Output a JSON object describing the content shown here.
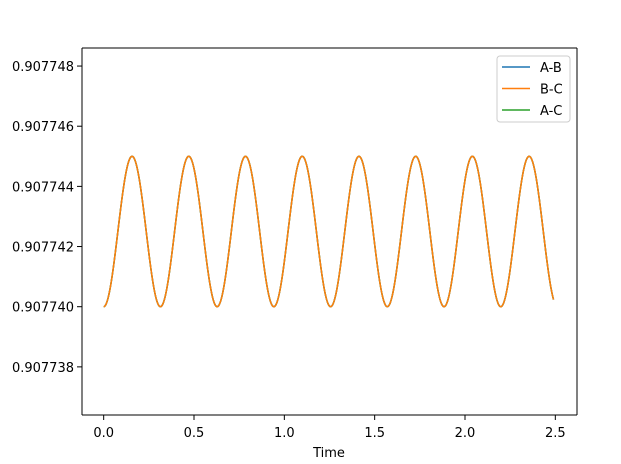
{
  "chart_data": {
    "type": "line",
    "title": "",
    "xlabel": "Time",
    "ylabel": "",
    "xlim": [
      -0.12,
      2.62
    ],
    "ylim": [
      0.9077364,
      0.9077486
    ],
    "x_ticks": [
      0.0,
      0.5,
      1.0,
      1.5,
      2.0,
      2.5
    ],
    "x_tick_labels": [
      "0.0",
      "0.5",
      "1.0",
      "1.5",
      "2.0",
      "2.5"
    ],
    "y_ticks": [
      0.907738,
      0.90774,
      0.907742,
      0.907744,
      0.907746,
      0.907748
    ],
    "y_tick_labels": [
      "0.907738",
      "0.907740",
      "0.907742",
      "0.907744",
      "0.907746",
      "0.907748"
    ],
    "grid": false,
    "legend_position": "top-right",
    "signal": {
      "x_start": 0.0,
      "x_end": 2.49,
      "min": 0.90774,
      "max": 0.907745,
      "period": 0.314
    },
    "series": [
      {
        "name": "A-B",
        "color": "#1f77b4"
      },
      {
        "name": "B-C",
        "color": "#ff7f0e"
      },
      {
        "name": "A-C",
        "color": "#2ca02c"
      }
    ],
    "drawn_order": [
      "A-B",
      "A-C",
      "B-C"
    ]
  }
}
